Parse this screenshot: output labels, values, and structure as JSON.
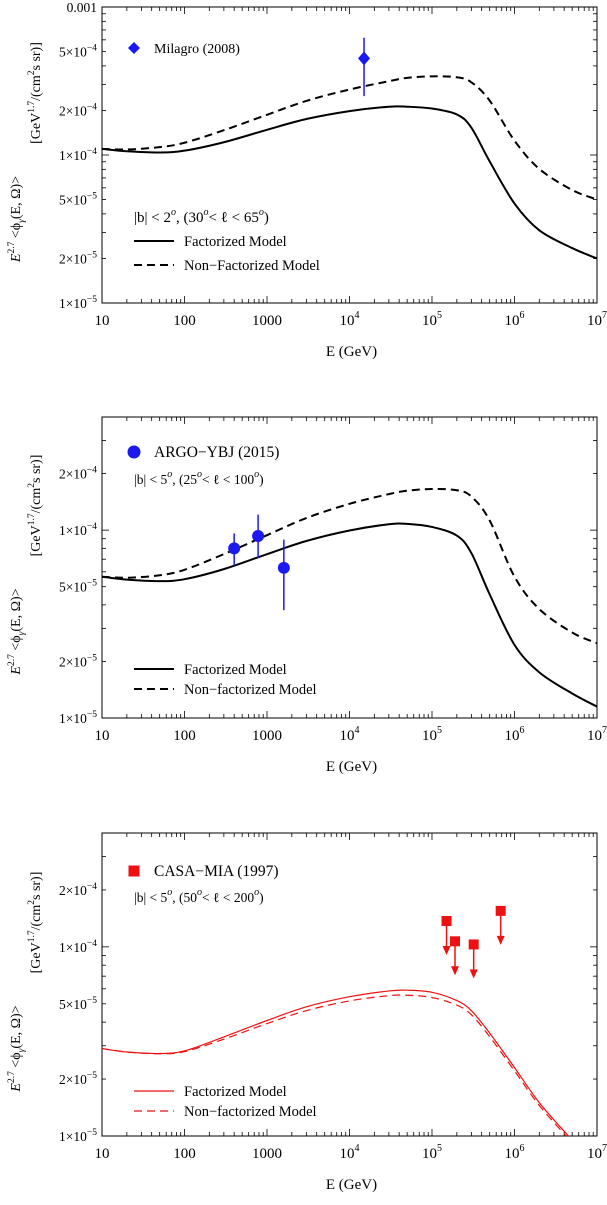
{
  "chart_data": [
    {
      "type": "line",
      "panel": "top",
      "xlabel": "E (GeV)",
      "ylabel_main": "E",
      "ylabel_sup": "2.7",
      "ylabel_rest": " <ϕ",
      "ylabel_sub": "γ",
      "ylabel_rest2": "(E, Ω)>",
      "yunit_main": "[GeV",
      "yunit_sup": "1.7",
      "yunit_rest": "/(cm",
      "yunit_sup2": "2",
      "yunit_rest2": "s sr)]",
      "x_scale": "log",
      "y_scale": "log",
      "xlim": [
        10,
        10000000
      ],
      "ylim": [
        1e-05,
        0.001
      ],
      "x_ticks": [
        {
          "value": 10,
          "label": "10"
        },
        {
          "value": 100,
          "label": "100"
        },
        {
          "value": 1000,
          "label": "1000"
        },
        {
          "value": 10000,
          "label": "10",
          "exp": "4"
        },
        {
          "value": 100000,
          "label": "10",
          "exp": "5"
        },
        {
          "value": 1000000,
          "label": "10",
          "exp": "6"
        },
        {
          "value": 10000000,
          "label": "10",
          "exp": "7"
        }
      ],
      "y_ticks": [
        {
          "value": 1e-05,
          "mant": "1×10",
          "exp": "−5"
        },
        {
          "value": 2e-05,
          "mant": "2×10",
          "exp": "−5"
        },
        {
          "value": 5e-05,
          "mant": "5×10",
          "exp": "−5"
        },
        {
          "value": 0.0001,
          "mant": "1×10",
          "exp": "−4"
        },
        {
          "value": 0.0002,
          "mant": "2×10",
          "exp": "−4"
        },
        {
          "value": 0.0005,
          "mant": "5×10",
          "exp": "−4"
        },
        {
          "value": 0.001,
          "mant": "0.001",
          "exp": ""
        }
      ],
      "region": {
        "b": "|b| < 2",
        "b_sup": "o",
        "mid": ",   (30",
        "l_sup1": "o",
        "lt": "< ℓ < 65",
        "l_sup2": "o",
        "end": ")"
      },
      "series": [
        {
          "name": "Factorized Model",
          "style": "solid",
          "color": "#000000",
          "x": [
            10,
            20,
            50,
            100,
            300,
            1000,
            3000,
            10000,
            30000,
            50000,
            100000,
            200000,
            300000,
            500000,
            1000000,
            2000000,
            5000000,
            10000000
          ],
          "y": [
            0.00011,
            0.000106,
            0.000104,
            0.000107,
            0.000122,
            0.000148,
            0.000175,
            0.000198,
            0.000212,
            0.000212,
            0.000206,
            0.000188,
            0.000153,
            9.05e-05,
            4.7e-05,
            3.1e-05,
            2.35e-05,
            2e-05
          ]
        },
        {
          "name": "Non-Factorized Model",
          "style": "dashed",
          "color": "#000000",
          "x": [
            10,
            20,
            50,
            100,
            300,
            1000,
            3000,
            10000,
            30000,
            50000,
            100000,
            200000,
            300000,
            500000,
            1000000,
            2000000,
            5000000,
            10000000
          ],
          "y": [
            0.00011,
            0.000109,
            0.000113,
            0.000121,
            0.000147,
            0.000187,
            0.000232,
            0.000277,
            0.000315,
            0.000332,
            0.00034,
            0.000335,
            0.00031,
            0.000233,
            0.000125,
            8.05e-05,
            5.8e-05,
            5e-05
          ]
        }
      ],
      "points": [
        {
          "name": "Milagro (2008)",
          "marker": "diamond",
          "color": "#1a1aee",
          "x": 15000,
          "y": 0.00045,
          "ylow": 0.00025,
          "yhigh": 0.00062,
          "upper_limit": false
        }
      ],
      "legend_lines": [
        "Factorized Model",
        "Non−Factorized Model"
      ]
    },
    {
      "type": "line",
      "panel": "middle",
      "xlabel": "E (GeV)",
      "ylabel_main": "E",
      "ylabel_sup": "2.7",
      "ylabel_rest": " <ϕ",
      "ylabel_sub": "γ",
      "ylabel_rest2": "(E, Ω)>",
      "yunit_main": "[GeV",
      "yunit_sup": "1.7",
      "yunit_rest": "/(cm",
      "yunit_sup2": "2",
      "yunit_rest2": "s sr)]",
      "x_scale": "log",
      "y_scale": "log",
      "xlim": [
        10,
        10000000
      ],
      "ylim": [
        1e-05,
        0.0004
      ],
      "x_ticks": [
        {
          "value": 10,
          "label": "10"
        },
        {
          "value": 100,
          "label": "100"
        },
        {
          "value": 1000,
          "label": "1000"
        },
        {
          "value": 10000,
          "label": "10",
          "exp": "4"
        },
        {
          "value": 100000,
          "label": "10",
          "exp": "5"
        },
        {
          "value": 1000000,
          "label": "10",
          "exp": "6"
        },
        {
          "value": 10000000,
          "label": "10",
          "exp": "7"
        }
      ],
      "y_ticks": [
        {
          "value": 1e-05,
          "mant": "1×10",
          "exp": "−5"
        },
        {
          "value": 2e-05,
          "mant": "2×10",
          "exp": "−5"
        },
        {
          "value": 5e-05,
          "mant": "5×10",
          "exp": "−5"
        },
        {
          "value": 0.0001,
          "mant": "1×10",
          "exp": "−4"
        },
        {
          "value": 0.0002,
          "mant": "2×10",
          "exp": "−4"
        }
      ],
      "region": {
        "b": "|b| < 5",
        "b_sup": "o",
        "mid": ",   (25",
        "l_sup1": "o",
        "lt": "< ℓ < 100",
        "l_sup2": "o",
        "end": ")"
      },
      "series": [
        {
          "name": "Factorized Model",
          "style": "solid",
          "color": "#000000",
          "x": [
            10,
            20,
            50,
            100,
            300,
            1000,
            3000,
            10000,
            30000,
            50000,
            100000,
            200000,
            300000,
            500000,
            1000000,
            2000000,
            5000000,
            10000000
          ],
          "y": [
            5.65e-05,
            5.45e-05,
            5.35e-05,
            5.48e-05,
            6.2e-05,
            7.45e-05,
            8.75e-05,
            9.95e-05,
            0.0001075,
            0.000108,
            0.000104,
            9.35e-05,
            7.55e-05,
            4.55e-05,
            2.45e-05,
            1.75e-05,
            1.35e-05,
            1.15e-05
          ]
        },
        {
          "name": "Non-factorized Model",
          "style": "dashed",
          "color": "#000000",
          "x": [
            10,
            20,
            50,
            100,
            300,
            1000,
            3000,
            10000,
            30000,
            50000,
            100000,
            200000,
            300000,
            500000,
            1000000,
            2000000,
            5000000,
            10000000
          ],
          "y": [
            5.65e-05,
            5.58e-05,
            5.75e-05,
            6.15e-05,
            7.45e-05,
            9.4e-05,
            0.000116,
            0.000138,
            0.0001555,
            0.000162,
            0.0001655,
            0.000163,
            0.000151,
            0.0001125,
            5.65e-05,
            3.8e-05,
            2.85e-05,
            2.5e-05
          ]
        }
      ],
      "points": [
        {
          "name": "ARGO-YBJ (2015)",
          "marker": "circle",
          "color": "#1a1aee",
          "x": 400,
          "y": 8e-05,
          "ylow": 6.5e-05,
          "yhigh": 9.6e-05,
          "upper_limit": false
        },
        {
          "name": "ARGO-YBJ (2015)",
          "marker": "circle",
          "color": "#1a1aee",
          "x": 780,
          "y": 9.3e-05,
          "ylow": 7.1e-05,
          "yhigh": 0.000121,
          "upper_limit": false
        },
        {
          "name": "ARGO-YBJ (2015)",
          "marker": "circle",
          "color": "#1a1aee",
          "x": 1600,
          "y": 6.3e-05,
          "ylow": 3.75e-05,
          "yhigh": 8.9e-05,
          "upper_limit": false
        }
      ],
      "legend_lines": [
        "Factorized Model",
        "Non−factorized Model"
      ]
    },
    {
      "type": "line",
      "panel": "bottom",
      "xlabel": "E (GeV)",
      "ylabel_main": "E",
      "ylabel_sup": "2.7",
      "ylabel_rest": " <ϕ",
      "ylabel_sub": "γ",
      "ylabel_rest2": "(E, Ω)>",
      "yunit_main": "[GeV",
      "yunit_sup": "1.7",
      "yunit_rest": "/(cm",
      "yunit_sup2": "2",
      "yunit_rest2": "s sr)]",
      "x_scale": "log",
      "y_scale": "log",
      "xlim": [
        10,
        10000000
      ],
      "ylim": [
        1e-05,
        0.0004
      ],
      "x_ticks": [
        {
          "value": 10,
          "label": "10"
        },
        {
          "value": 100,
          "label": "100"
        },
        {
          "value": 1000,
          "label": "1000"
        },
        {
          "value": 10000,
          "label": "10",
          "exp": "4"
        },
        {
          "value": 100000,
          "label": "10",
          "exp": "5"
        },
        {
          "value": 1000000,
          "label": "10",
          "exp": "6"
        },
        {
          "value": 10000000,
          "label": "10",
          "exp": "7"
        }
      ],
      "y_ticks": [
        {
          "value": 1e-05,
          "mant": "1×10",
          "exp": "−5"
        },
        {
          "value": 2e-05,
          "mant": "2×10",
          "exp": "−5"
        },
        {
          "value": 5e-05,
          "mant": "5×10",
          "exp": "−5"
        },
        {
          "value": 0.0001,
          "mant": "1×10",
          "exp": "−4"
        },
        {
          "value": 0.0002,
          "mant": "2×10",
          "exp": "−4"
        }
      ],
      "region": {
        "b": "|b| < 5",
        "b_sup": "o",
        "mid": ",   (50",
        "l_sup1": "o",
        "lt": "< ℓ < 200",
        "l_sup2": "o",
        "end": ")"
      },
      "series": [
        {
          "name": "Factorized Model",
          "style": "solid",
          "color": "#ee1111",
          "x": [
            10,
            20,
            50,
            100,
            300,
            1000,
            3000,
            10000,
            30000,
            50000,
            100000,
            200000,
            300000,
            500000,
            1000000,
            2000000,
            4500000
          ],
          "y": [
            2.9e-05,
            2.78e-05,
            2.73e-05,
            2.82e-05,
            3.34e-05,
            4.08e-05,
            4.82e-05,
            5.45e-05,
            5.85e-05,
            5.9e-05,
            5.75e-05,
            5.2e-05,
            4.6e-05,
            3.5e-05,
            2.3e-05,
            1.5e-05,
            1e-05
          ]
        },
        {
          "name": "Non-factorized Model",
          "style": "dashed",
          "color": "#ee1111",
          "x": [
            10,
            20,
            50,
            100,
            300,
            1000,
            3000,
            10000,
            30000,
            50000,
            100000,
            200000,
            300000,
            500000,
            1000000,
            2000000,
            4500000
          ],
          "y": [
            2.9e-05,
            2.78e-05,
            2.72e-05,
            2.79e-05,
            3.25e-05,
            3.93e-05,
            4.6e-05,
            5.18e-05,
            5.52e-05,
            5.55e-05,
            5.4e-05,
            4.92e-05,
            4.38e-05,
            3.35e-05,
            2.21e-05,
            1.45e-05,
            9.7e-06
          ]
        }
      ],
      "points": [
        {
          "name": "CASA-MIA (1997)",
          "marker": "square",
          "color": "#ee1111",
          "x": 150000,
          "y": 0.000137,
          "upper_limit": true
        },
        {
          "name": "CASA-MIA (1997)",
          "marker": "square",
          "color": "#ee1111",
          "x": 190000,
          "y": 0.000107,
          "upper_limit": true
        },
        {
          "name": "CASA-MIA (1997)",
          "marker": "square",
          "color": "#ee1111",
          "x": 320000,
          "y": 0.000103,
          "upper_limit": true
        },
        {
          "name": "CASA-MIA (1997)",
          "marker": "square",
          "color": "#ee1111",
          "x": 680000,
          "y": 0.000155,
          "upper_limit": true
        }
      ],
      "legend_lines": [
        "Factorized Model",
        "Non−factorized Model"
      ]
    }
  ],
  "legend_data_labels": [
    "Milagro (2008)",
    "ARGO−YBJ (2015)",
    "CASA−MIA (1997)"
  ]
}
